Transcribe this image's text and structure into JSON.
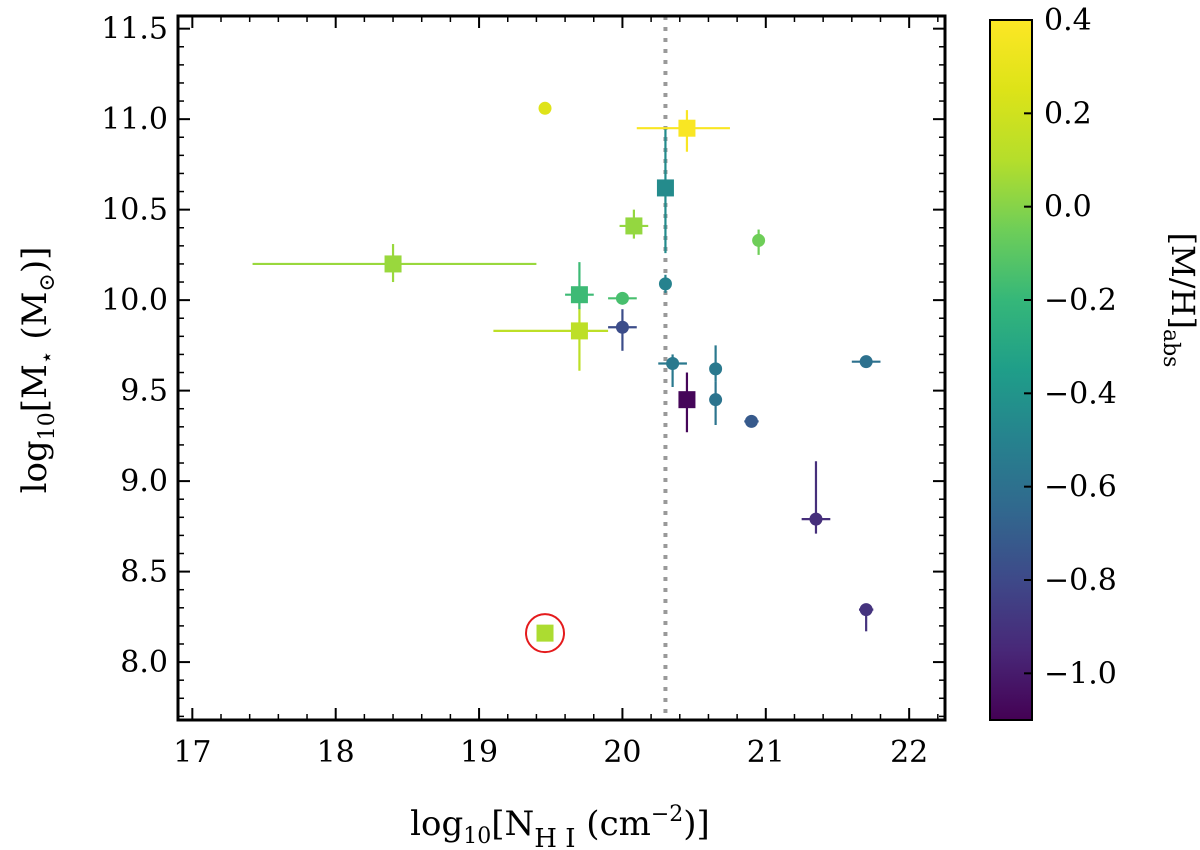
{
  "chart_data": {
    "type": "scatter",
    "title": "",
    "xlabel": {
      "prefix": "log",
      "sub": "10",
      "open": "[N",
      "species": "H I",
      "unit": " (cm",
      "exp": "−2",
      "close": ")]"
    },
    "ylabel": {
      "prefix": "log",
      "sub": "10",
      "open": "[M",
      "star": "⋆",
      "unit": " (M",
      "sun": "⊙",
      "close": ")]"
    },
    "xlim": [
      16.9,
      22.25
    ],
    "ylim": [
      7.68,
      11.57
    ],
    "xticks": [
      17,
      18,
      19,
      20,
      21,
      22
    ],
    "xtick_labels": [
      "17",
      "18",
      "19",
      "20",
      "21",
      "22"
    ],
    "yticks": [
      8.0,
      8.5,
      9.0,
      9.5,
      10.0,
      10.5,
      11.0,
      11.5
    ],
    "ytick_labels": [
      "8.0",
      "8.5",
      "9.0",
      "9.5",
      "10.0",
      "10.5",
      "11.0",
      "11.5"
    ],
    "vline_x": 20.3,
    "colorbar": {
      "label_main": "[M/H]",
      "label_sub": "abs",
      "range": [
        -1.1,
        0.4
      ],
      "ticks": [
        0.4,
        0.2,
        0.0,
        -0.2,
        -0.4,
        -0.6,
        -0.8,
        -1.0
      ],
      "tick_labels": [
        "0.4",
        "0.2",
        "0.0",
        "−0.2",
        "−0.4",
        "−0.6",
        "−0.8",
        "−1.0"
      ],
      "colormap": "viridis"
    },
    "highlight": {
      "x": 19.46,
      "y": 8.16,
      "color": "#e41a1c"
    },
    "series": [
      {
        "name": "squares",
        "marker": "square",
        "points": [
          {
            "x": 18.4,
            "y": 10.2,
            "xerr": [
              0.98,
              1.0
            ],
            "yerr": [
              0.1,
              0.11
            ],
            "mh": 0.04
          },
          {
            "x": 19.46,
            "y": 8.16,
            "xerr": [
              0.05,
              0.05
            ],
            "yerr": [
              0.03,
              0.03
            ],
            "mh": 0.08
          },
          {
            "x": 19.7,
            "y": 9.83,
            "xerr": [
              0.6,
              0.2
            ],
            "yerr": [
              0.22,
              0.17
            ],
            "mh": 0.13
          },
          {
            "x": 19.7,
            "y": 10.03,
            "xerr": [
              0.1,
              0.1
            ],
            "yerr": [
              0.08,
              0.18
            ],
            "mh": -0.18
          },
          {
            "x": 20.08,
            "y": 10.41,
            "xerr": [
              0.1,
              0.1
            ],
            "yerr": [
              0.07,
              0.09
            ],
            "mh": 0.03
          },
          {
            "x": 20.3,
            "y": 10.62,
            "xerr": [
              0.05,
              0.05
            ],
            "yerr": [
              0.36,
              0.33
            ],
            "mh": -0.45
          },
          {
            "x": 20.45,
            "y": 10.95,
            "xerr": [
              0.35,
              0.3
            ],
            "yerr": [
              0.13,
              0.1
            ],
            "mh": 0.38
          },
          {
            "x": 20.45,
            "y": 9.45,
            "xerr": [
              0.05,
              0.05
            ],
            "yerr": [
              0.18,
              0.15
            ],
            "mh": -1.08
          }
        ]
      },
      {
        "name": "circles",
        "marker": "circle",
        "points": [
          {
            "x": 19.46,
            "y": 11.06,
            "xerr": [
              0,
              0
            ],
            "yerr": [
              0,
              0
            ],
            "mh": 0.26
          },
          {
            "x": 20.0,
            "y": 10.01,
            "xerr": [
              0.1,
              0.1
            ],
            "yerr": [
              0.03,
              0.03
            ],
            "mh": -0.15
          },
          {
            "x": 20.0,
            "y": 9.85,
            "xerr": [
              0.1,
              0.1
            ],
            "yerr": [
              0.13,
              0.1
            ],
            "mh": -0.78
          },
          {
            "x": 20.3,
            "y": 10.09,
            "xerr": [
              0,
              0
            ],
            "yerr": [
              0.05,
              0.05
            ],
            "mh": -0.5
          },
          {
            "x": 20.35,
            "y": 9.65,
            "xerr": [
              0.1,
              0.1
            ],
            "yerr": [
              0.13,
              0.05
            ],
            "mh": -0.55
          },
          {
            "x": 20.65,
            "y": 9.62,
            "xerr": [
              0,
              0
            ],
            "yerr": [
              0.07,
              0.13
            ],
            "mh": -0.55
          },
          {
            "x": 20.65,
            "y": 9.45,
            "xerr": [
              0,
              0
            ],
            "yerr": [
              0.14,
              0.1
            ],
            "mh": -0.58
          },
          {
            "x": 20.9,
            "y": 9.33,
            "xerr": [
              0.05,
              0.05
            ],
            "yerr": [
              0.02,
              0.02
            ],
            "mh": -0.72
          },
          {
            "x": 20.95,
            "y": 10.33,
            "xerr": [
              0,
              0
            ],
            "yerr": [
              0.08,
              0.06
            ],
            "mh": -0.05
          },
          {
            "x": 21.35,
            "y": 8.79,
            "xerr": [
              0.1,
              0.1
            ],
            "yerr": [
              0.08,
              0.32
            ],
            "mh": -0.92
          },
          {
            "x": 21.7,
            "y": 9.66,
            "xerr": [
              0.1,
              0.1
            ],
            "yerr": [
              0.02,
              0.02
            ],
            "mh": -0.6
          },
          {
            "x": 21.7,
            "y": 8.29,
            "xerr": [
              0.05,
              0.05
            ],
            "yerr": [
              0.12,
              0.03
            ],
            "mh": -0.9
          }
        ]
      }
    ]
  }
}
